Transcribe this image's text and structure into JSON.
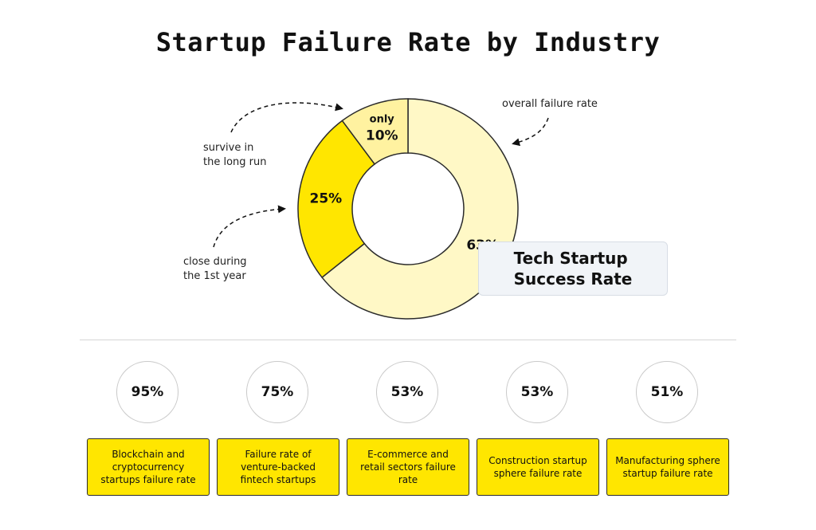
{
  "title": "Startup Failure Rate by Industry",
  "chart_data": {
    "type": "pie",
    "style": "donut",
    "slices": [
      {
        "label": "63%",
        "value": 63,
        "color": "#fff8c6"
      },
      {
        "label": "25%",
        "value": 25,
        "color": "#ffe600"
      },
      {
        "label": "10%",
        "prefix": "only",
        "value": 10,
        "color": "#fff2a0"
      }
    ],
    "annotations": [
      {
        "text": "overall failure rate",
        "slice": "63%"
      },
      {
        "text": "survive in\nthe long run",
        "slice": "10%"
      },
      {
        "text": "close during\nthe 1st year",
        "slice": "25%"
      }
    ],
    "center_callout": "Tech Startup\nSuccess Rate"
  },
  "stats": [
    {
      "value": "95%",
      "label": "Blockchain and cryptocurrency startups failure rate"
    },
    {
      "value": "75%",
      "label": "Failure rate of venture-backed fintech startups"
    },
    {
      "value": "53%",
      "label": "E-commerce and retail sectors failure rate"
    },
    {
      "value": "53%",
      "label": "Construction startup sphere failure rate"
    },
    {
      "value": "51%",
      "label": "Manufacturing sphere startup failure rate"
    }
  ],
  "colors": {
    "accent": "#ffe600",
    "outline": "#2b2b2b"
  }
}
